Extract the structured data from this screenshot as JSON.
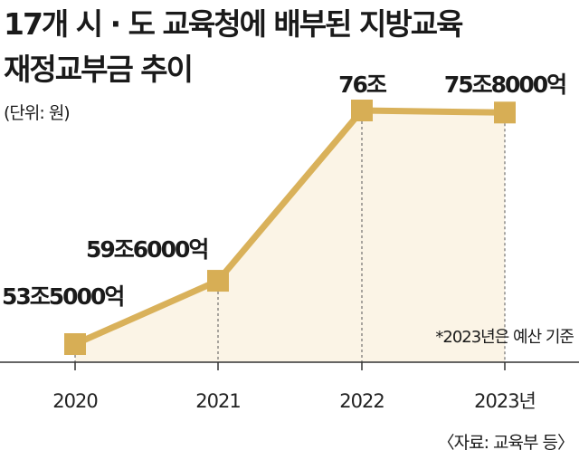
{
  "chart_data": {
    "type": "line",
    "title_line1": "17개 시 · 도 교육청에 배부된 지방교육",
    "title_line2": "재정교부금 추이",
    "unit_label": "(단위: 원)",
    "categories": [
      "2020",
      "2021",
      "2022",
      "2023년"
    ],
    "values": [
      53.5,
      59.6,
      76.0,
      75.8
    ],
    "value_unit": "조원",
    "data_labels": [
      "53조5000억",
      "59조6000억",
      "76조",
      "75조8000억"
    ],
    "ylim": [
      50,
      78
    ],
    "grid": false,
    "note": "*2023년은 예산 기준",
    "source": "〈자료: 교육부 등〉",
    "colors": {
      "line": "#d9b15a",
      "marker": "#d7ae55",
      "area": "#fbf4e6",
      "guide": "#555555",
      "axis": "#333333"
    }
  }
}
